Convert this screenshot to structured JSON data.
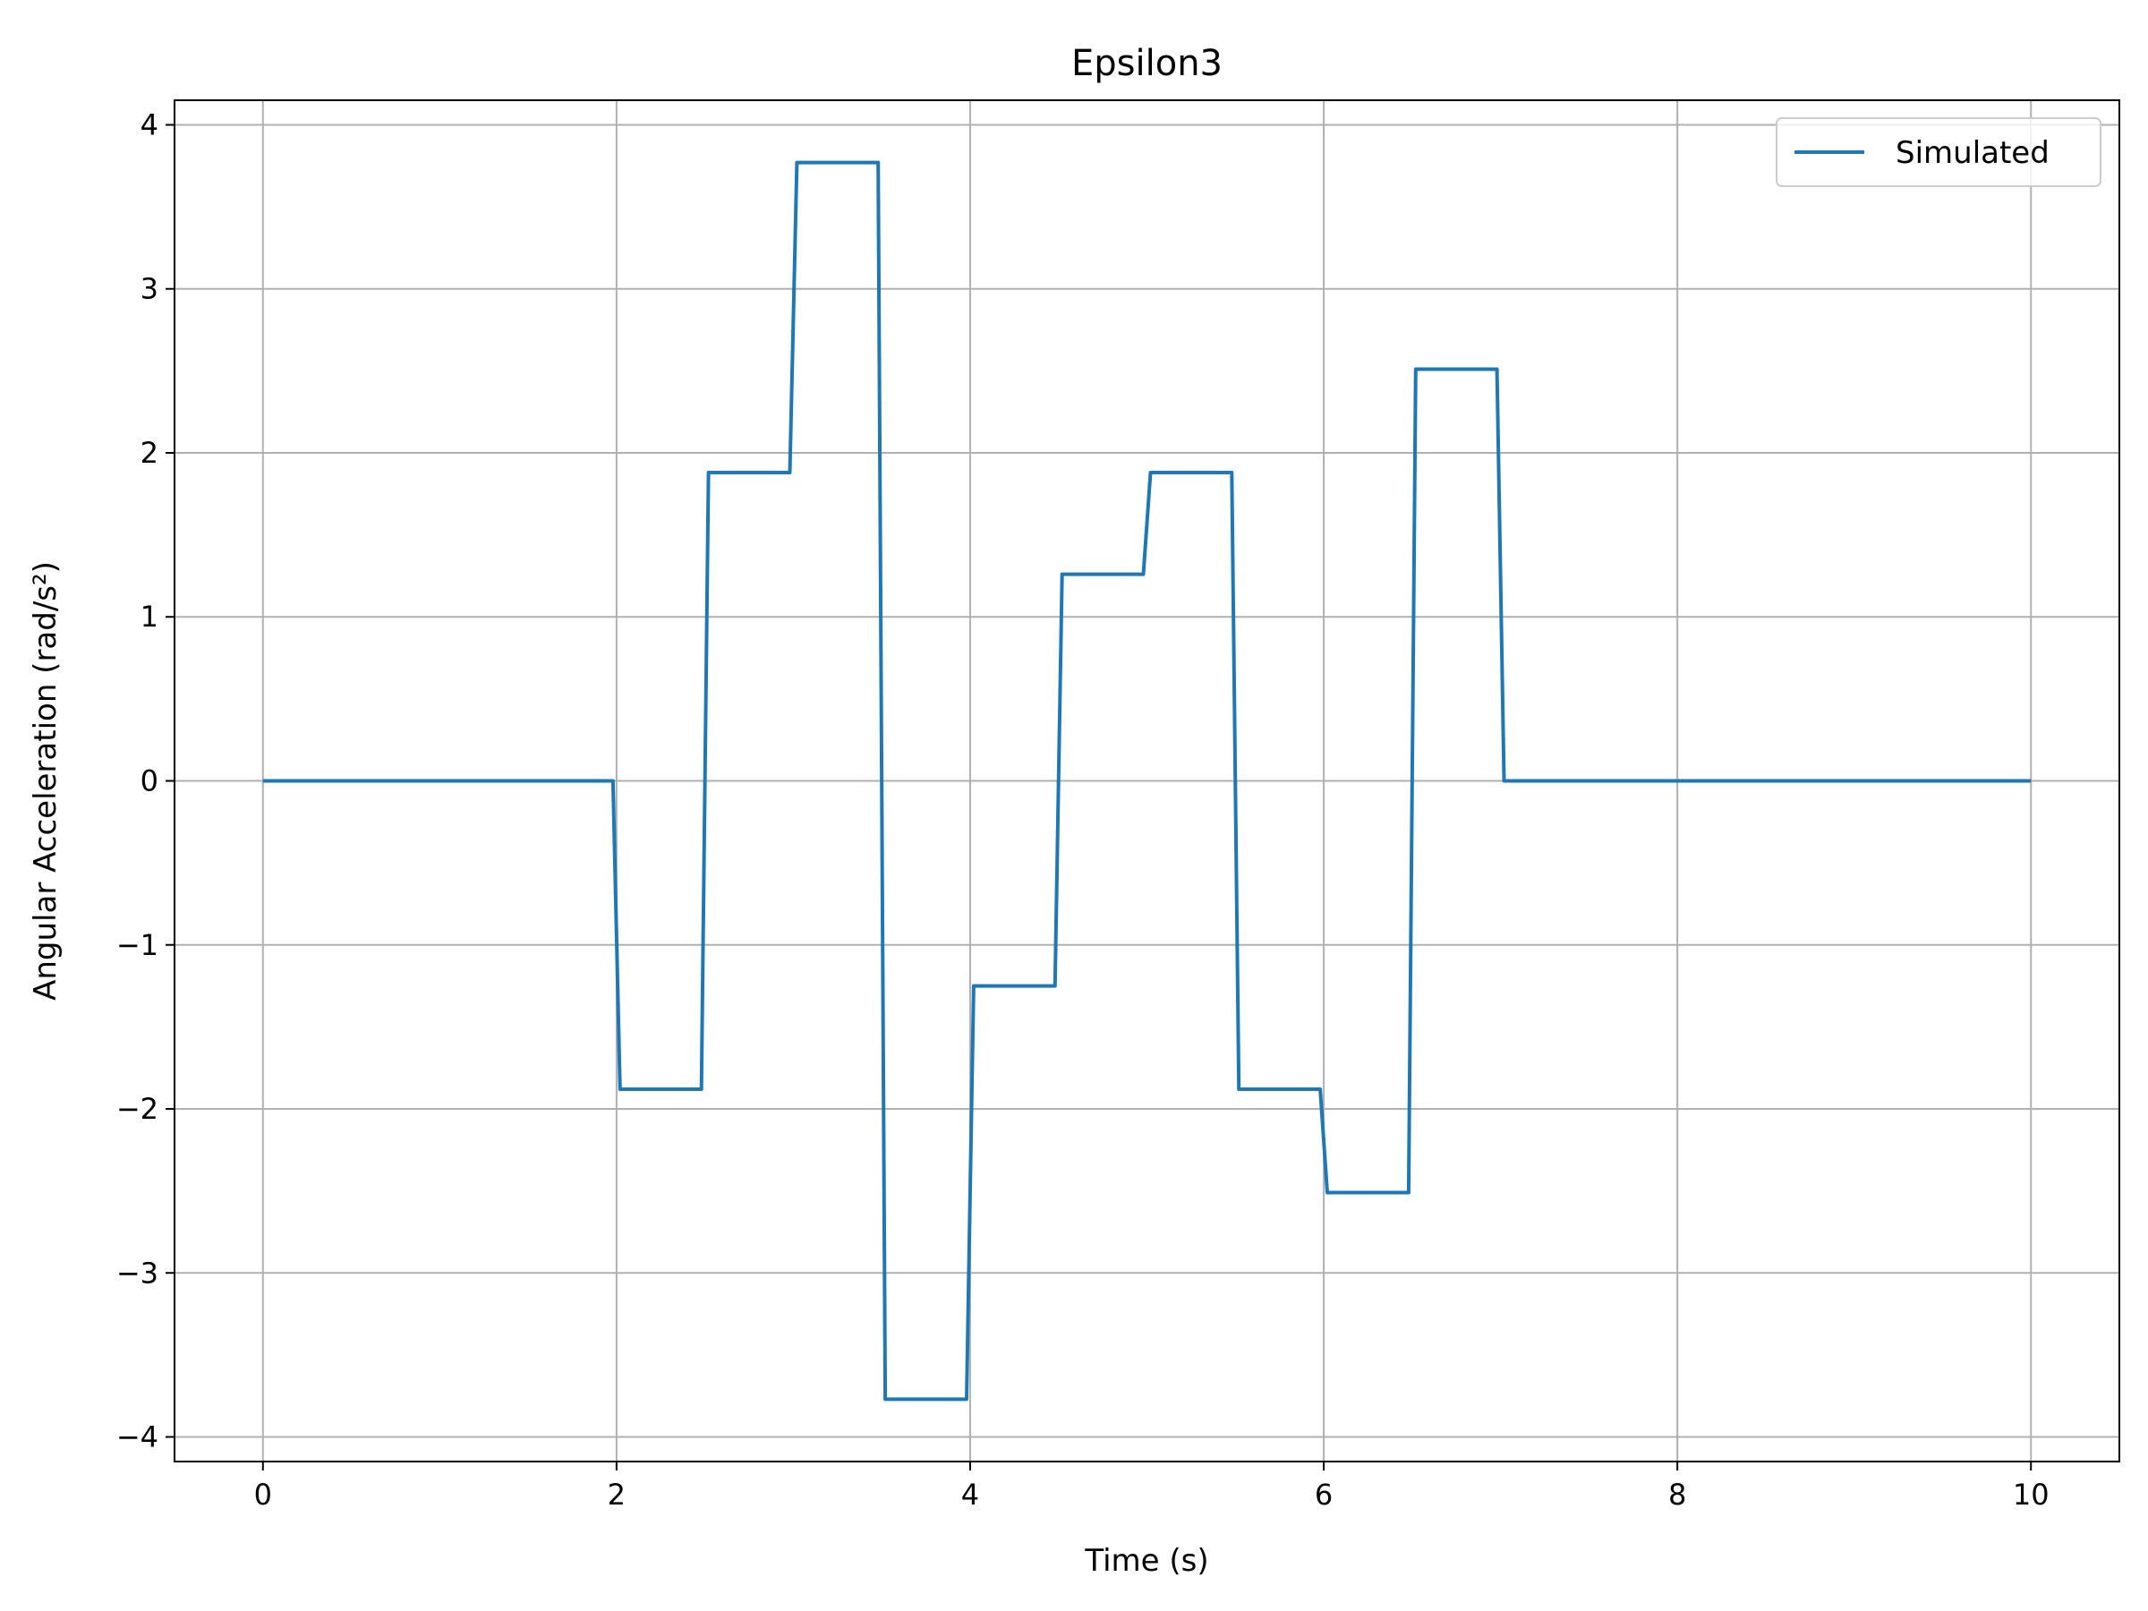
{
  "chart_data": {
    "type": "line",
    "title": "Epsilon3",
    "xlabel": "Time (s)",
    "ylabel": "Angular Acceleration (rad/s²)",
    "xlim": [
      -0.5,
      10.5
    ],
    "ylim": [
      -4.15,
      4.15
    ],
    "xticks": [
      0,
      2,
      4,
      6,
      8,
      10
    ],
    "xtick_labels": [
      "0",
      "2",
      "4",
      "6",
      "8",
      "10"
    ],
    "yticks": [
      4,
      3,
      2,
      1,
      0,
      -1,
      -2,
      -3,
      -4
    ],
    "ytick_labels": [
      "4",
      "3",
      "2",
      "1",
      "0",
      "−1",
      "−2",
      "−3",
      "−4"
    ],
    "grid": true,
    "legend": {
      "position": "upper-right",
      "entries": [
        "Simulated"
      ]
    },
    "series": [
      {
        "name": "Simulated",
        "color": "#1f77b4",
        "x": [
          0,
          1.98,
          2.02,
          2.48,
          2.52,
          2.98,
          3.02,
          3.48,
          3.52,
          3.98,
          4.02,
          4.48,
          4.52,
          4.98,
          5.02,
          5.48,
          5.52,
          5.98,
          6.02,
          6.48,
          6.52,
          6.98,
          7.02,
          10
        ],
        "y": [
          0,
          0,
          -1.88,
          -1.88,
          1.88,
          1.88,
          3.77,
          3.77,
          -3.77,
          -3.77,
          -1.25,
          -1.25,
          1.26,
          1.26,
          1.88,
          1.88,
          -1.88,
          -1.88,
          -2.51,
          -2.51,
          2.51,
          2.51,
          0,
          0
        ]
      }
    ]
  }
}
